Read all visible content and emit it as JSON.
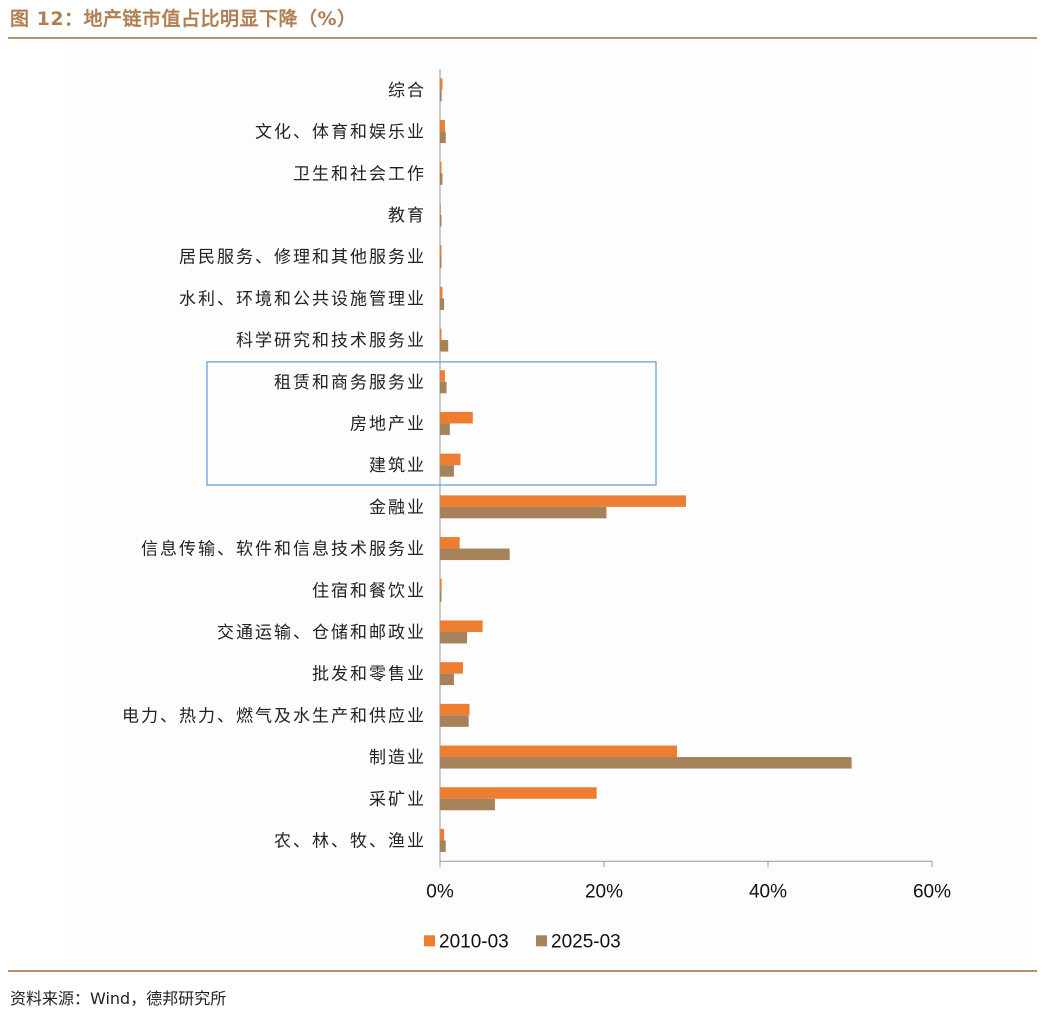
{
  "header": {
    "title": "图 12：地产链市值占比明显下降（%）"
  },
  "footer": {
    "source": "资料来源：Wind，德邦研究所"
  },
  "chart_data": {
    "type": "bar",
    "orientation": "horizontal",
    "categories": [
      "综合",
      "文化、体育和娱乐业",
      "卫生和社会工作",
      "教育",
      "居民服务、修理和其他服务业",
      "水利、环境和公共设施管理业",
      "科学研究和技术服务业",
      "租赁和商务服务业",
      "房地产业",
      "建筑业",
      "金融业",
      "信息传输、软件和信息技术服务业",
      "住宿和餐饮业",
      "交通运输、仓储和邮政业",
      "批发和零售业",
      "电力、热力、燃气及水生产和供应业",
      "制造业",
      "采矿业",
      "农、林、牧、渔业"
    ],
    "series": [
      {
        "name": "2010-03",
        "color": "#ed7d31",
        "values": [
          0.3,
          0.6,
          0.1,
          0.0,
          0.1,
          0.3,
          0.1,
          0.6,
          4.0,
          2.5,
          30.0,
          2.4,
          0.2,
          5.2,
          2.8,
          3.6,
          28.9,
          19.1,
          0.5
        ]
      },
      {
        "name": "2025-03",
        "color": "#a5825a",
        "values": [
          0.2,
          0.7,
          0.3,
          0.1,
          0.1,
          0.5,
          1.0,
          0.8,
          1.2,
          1.7,
          20.3,
          8.5,
          0.1,
          3.3,
          1.7,
          3.5,
          50.2,
          6.7,
          0.7
        ]
      }
    ],
    "xlim": [
      0,
      60
    ],
    "xticks": [
      "0%",
      "20%",
      "40%",
      "60%"
    ],
    "highlight": [
      "租赁和商务服务业",
      "房地产业",
      "建筑业"
    ],
    "highlight_color": "#5b9bd5",
    "legend_position": "bottom"
  }
}
